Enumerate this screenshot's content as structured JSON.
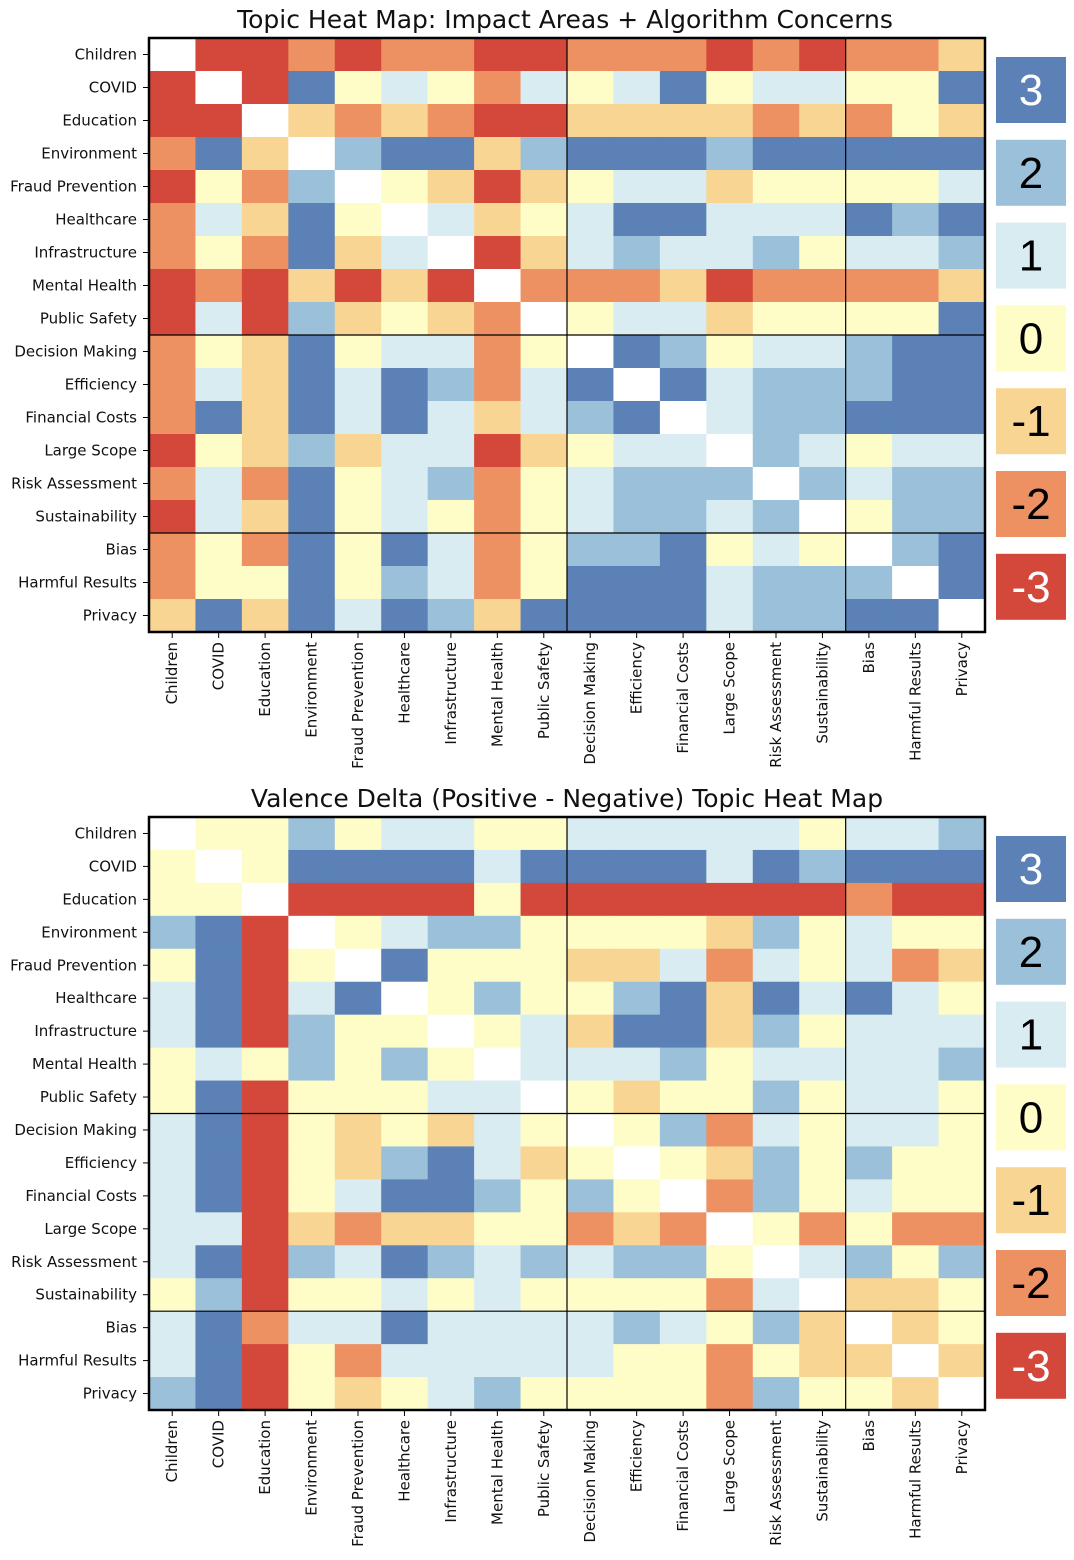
{
  "colors": {
    "3": "#5b81b7",
    "2": "#9bc1da",
    "1": "#d9ecf2",
    "0": "#fefdc7",
    "-1": "#f9d594",
    "-2": "#ed9162",
    "-3": "#d3483a",
    "diag": "#ffffff"
  },
  "chart_data": [
    {
      "type": "heatmap",
      "title": "Topic Heat Map: Impact Areas + Algorithm Concerns",
      "categories": [
        "Children",
        "COVID",
        "Education",
        "Environment",
        "Fraud Prevention",
        "Healthcare",
        "Infrastructure",
        "Mental Health",
        "Public Safety",
        "Decision Making",
        "Efficiency",
        "Financial Costs",
        "Large Scope",
        "Risk Assessment",
        "Sustainability",
        "Bias",
        "Harmful Results",
        "Privacy"
      ],
      "group_boundaries_after_index": [
        8,
        14
      ],
      "values": [
        [
          null,
          -3,
          -3,
          -2,
          -3,
          -2,
          -2,
          -3,
          -3,
          -2,
          -2,
          -2,
          -3,
          -2,
          -3,
          -2,
          -2,
          -1
        ],
        [
          -3,
          null,
          -3,
          3,
          0,
          1,
          0,
          -2,
          1,
          0,
          1,
          3,
          0,
          1,
          1,
          0,
          0,
          3
        ],
        [
          -3,
          -3,
          null,
          -1,
          -2,
          -1,
          -2,
          -3,
          -3,
          -1,
          -1,
          -1,
          -1,
          -2,
          -1,
          -2,
          0,
          -1
        ],
        [
          -2,
          3,
          -1,
          null,
          2,
          3,
          3,
          -1,
          2,
          3,
          3,
          3,
          2,
          3,
          3,
          3,
          3,
          3
        ],
        [
          -3,
          0,
          -2,
          2,
          null,
          0,
          -1,
          -3,
          -1,
          0,
          1,
          1,
          -1,
          0,
          0,
          0,
          0,
          1
        ],
        [
          -2,
          1,
          -1,
          3,
          0,
          null,
          1,
          -1,
          0,
          1,
          3,
          3,
          1,
          1,
          1,
          3,
          2,
          3
        ],
        [
          -2,
          0,
          -2,
          3,
          -1,
          1,
          null,
          -3,
          -1,
          1,
          2,
          1,
          1,
          2,
          0,
          1,
          1,
          2
        ],
        [
          -3,
          -2,
          -3,
          -1,
          -3,
          -1,
          -3,
          null,
          -2,
          -2,
          -2,
          -1,
          -3,
          -2,
          -2,
          -2,
          -2,
          -1
        ],
        [
          -3,
          1,
          -3,
          2,
          -1,
          0,
          -1,
          -2,
          null,
          0,
          1,
          1,
          -1,
          0,
          0,
          0,
          0,
          3
        ],
        [
          -2,
          0,
          -1,
          3,
          0,
          1,
          1,
          -2,
          0,
          null,
          3,
          2,
          0,
          1,
          1,
          2,
          3,
          3
        ],
        [
          -2,
          1,
          -1,
          3,
          1,
          3,
          2,
          -2,
          1,
          3,
          null,
          3,
          1,
          2,
          2,
          2,
          3,
          3
        ],
        [
          -2,
          3,
          -1,
          3,
          1,
          3,
          1,
          -1,
          1,
          2,
          3,
          null,
          1,
          2,
          2,
          3,
          3,
          3
        ],
        [
          -3,
          0,
          -1,
          2,
          -1,
          1,
          1,
          -3,
          -1,
          0,
          1,
          1,
          null,
          2,
          1,
          0,
          1,
          1
        ],
        [
          -2,
          1,
          -2,
          3,
          0,
          1,
          2,
          -2,
          0,
          1,
          2,
          2,
          2,
          null,
          2,
          1,
          2,
          2
        ],
        [
          -3,
          1,
          -1,
          3,
          0,
          1,
          0,
          -2,
          0,
          1,
          2,
          2,
          1,
          2,
          null,
          0,
          2,
          2
        ],
        [
          -2,
          0,
          -2,
          3,
          0,
          3,
          1,
          -2,
          0,
          2,
          2,
          3,
          0,
          1,
          0,
          null,
          2,
          3
        ],
        [
          -2,
          0,
          0,
          3,
          0,
          2,
          1,
          -2,
          0,
          3,
          3,
          3,
          1,
          2,
          2,
          2,
          null,
          3
        ],
        [
          -1,
          3,
          -1,
          3,
          1,
          3,
          2,
          -1,
          3,
          3,
          3,
          3,
          1,
          2,
          2,
          3,
          3,
          null
        ]
      ],
      "legend": {
        "levels": [
          3,
          2,
          1,
          0,
          -1,
          -2,
          -3
        ],
        "labels": [
          "3",
          "2",
          "1",
          "0",
          "-1",
          "-2",
          "-3"
        ]
      }
    },
    {
      "type": "heatmap",
      "title": "Valence Delta (Positive - Negative) Topic Heat Map",
      "categories": [
        "Children",
        "COVID",
        "Education",
        "Environment",
        "Fraud Prevention",
        "Healthcare",
        "Infrastructure",
        "Mental Health",
        "Public Safety",
        "Decision Making",
        "Efficiency",
        "Financial Costs",
        "Large Scope",
        "Risk Assessment",
        "Sustainability",
        "Bias",
        "Harmful Results",
        "Privacy"
      ],
      "group_boundaries_after_index": [
        8,
        14
      ],
      "values": [
        [
          null,
          0,
          0,
          2,
          0,
          1,
          1,
          0,
          0,
          1,
          1,
          1,
          1,
          1,
          0,
          1,
          1,
          2
        ],
        [
          0,
          null,
          0,
          3,
          3,
          3,
          3,
          1,
          3,
          3,
          3,
          3,
          1,
          3,
          2,
          3,
          3,
          3
        ],
        [
          0,
          0,
          null,
          -3,
          -3,
          -3,
          -3,
          0,
          -3,
          -3,
          -3,
          -3,
          -3,
          -3,
          -3,
          -2,
          -3,
          -3
        ],
        [
          2,
          3,
          -3,
          null,
          0,
          1,
          2,
          2,
          0,
          0,
          0,
          0,
          -1,
          2,
          0,
          1,
          0,
          0
        ],
        [
          0,
          3,
          -3,
          0,
          null,
          3,
          0,
          0,
          0,
          -1,
          -1,
          1,
          -2,
          1,
          0,
          1,
          -2,
          -1
        ],
        [
          1,
          3,
          -3,
          1,
          3,
          null,
          0,
          2,
          0,
          0,
          2,
          3,
          -1,
          3,
          1,
          3,
          1,
          0
        ],
        [
          1,
          3,
          -3,
          2,
          0,
          0,
          null,
          0,
          1,
          -1,
          3,
          3,
          -1,
          2,
          0,
          1,
          1,
          1
        ],
        [
          0,
          1,
          0,
          2,
          0,
          2,
          0,
          null,
          1,
          1,
          1,
          2,
          0,
          1,
          1,
          1,
          1,
          2
        ],
        [
          0,
          3,
          -3,
          0,
          0,
          0,
          1,
          1,
          null,
          0,
          -1,
          0,
          0,
          2,
          0,
          1,
          1,
          0
        ],
        [
          1,
          3,
          -3,
          0,
          -1,
          0,
          -1,
          1,
          0,
          null,
          0,
          2,
          -2,
          1,
          0,
          1,
          1,
          0
        ],
        [
          1,
          3,
          -3,
          0,
          -1,
          2,
          3,
          1,
          -1,
          0,
          null,
          0,
          -1,
          2,
          0,
          2,
          0,
          0
        ],
        [
          1,
          3,
          -3,
          0,
          1,
          3,
          3,
          2,
          0,
          2,
          0,
          null,
          -2,
          2,
          0,
          1,
          0,
          0
        ],
        [
          1,
          1,
          -3,
          -1,
          -2,
          -1,
          -1,
          0,
          0,
          -2,
          -1,
          -2,
          null,
          0,
          -2,
          0,
          -2,
          -2
        ],
        [
          1,
          3,
          -3,
          2,
          1,
          3,
          2,
          1,
          2,
          1,
          2,
          2,
          0,
          null,
          1,
          2,
          0,
          2
        ],
        [
          0,
          2,
          -3,
          0,
          0,
          1,
          0,
          1,
          0,
          0,
          0,
          0,
          -2,
          1,
          null,
          -1,
          -1,
          0
        ],
        [
          1,
          3,
          -2,
          1,
          1,
          3,
          1,
          1,
          1,
          1,
          2,
          1,
          0,
          2,
          -1,
          null,
          -1,
          0
        ],
        [
          1,
          3,
          -3,
          0,
          -2,
          1,
          1,
          1,
          1,
          1,
          0,
          0,
          -2,
          0,
          -1,
          -1,
          null,
          -1
        ],
        [
          2,
          3,
          -3,
          0,
          -1,
          0,
          1,
          2,
          0,
          0,
          0,
          0,
          -2,
          2,
          0,
          0,
          -1,
          null
        ]
      ],
      "legend": {
        "levels": [
          3,
          2,
          1,
          0,
          -1,
          -2,
          -3
        ],
        "labels": [
          "3",
          "2",
          "1",
          "0",
          "-1",
          "-2",
          "-3"
        ]
      }
    }
  ]
}
